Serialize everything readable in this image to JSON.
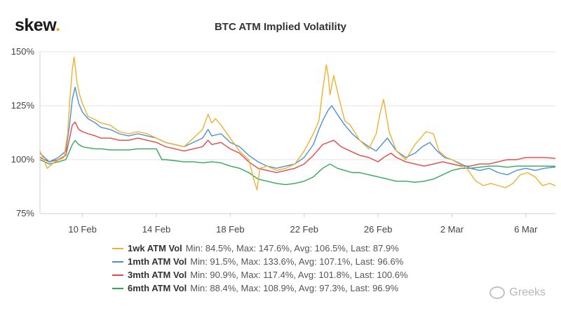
{
  "brand": {
    "logo_text": "skew",
    "logo_dot": "."
  },
  "watermark": {
    "text": "Greeks",
    "icon": "wechat-icon"
  },
  "chart_data": {
    "type": "line",
    "title": "BTC ATM Implied Volatility",
    "xlabel": "",
    "ylabel": "",
    "ylim": [
      75,
      150
    ],
    "yticks": [
      "75%",
      "100%",
      "125%",
      "150%"
    ],
    "ytick_values": [
      75,
      100,
      125,
      150
    ],
    "xlim": [
      7.7,
      35.6
    ],
    "xticks": [
      "10 Feb",
      "14 Feb",
      "18 Feb",
      "22 Feb",
      "26 Feb",
      "2 Mar",
      "6 Mar"
    ],
    "xtick_values": [
      10,
      14,
      18,
      22,
      26,
      30,
      34
    ],
    "series": [
      {
        "name": "1wk ATM Vol",
        "color": "#f0b030",
        "stats": "Min: 84.5%, Max: 147.6%, Avg: 106.5%, Last: 87.9%",
        "x": [
          7.7,
          8.1,
          8.5,
          9.0,
          9.2,
          9.3,
          9.45,
          9.55,
          9.7,
          9.85,
          10.0,
          10.3,
          10.6,
          11.0,
          11.5,
          12.0,
          12.5,
          13.0,
          13.5,
          14.0,
          14.5,
          15.0,
          15.5,
          16.0,
          16.5,
          16.8,
          17.0,
          17.2,
          17.5,
          18.0,
          18.5,
          19.0,
          19.3,
          19.45,
          19.6,
          20.0,
          20.5,
          21.0,
          21.5,
          22.0,
          22.5,
          22.8,
          23.0,
          23.2,
          23.3,
          23.4,
          23.6,
          23.9,
          24.2,
          24.5,
          25.0,
          25.5,
          25.9,
          26.1,
          26.3,
          26.6,
          27.0,
          27.5,
          28.0,
          28.3,
          28.6,
          29.0,
          29.3,
          29.7,
          30.0,
          30.4,
          30.8,
          31.3,
          31.7,
          32.1,
          32.5,
          32.9,
          33.3,
          33.7,
          34.1,
          34.5,
          34.9,
          35.3,
          35.6
        ],
        "y": [
          104,
          96,
          99,
          101,
          112,
          126,
          142,
          147.6,
          136,
          130,
          126,
          120,
          119,
          117,
          116,
          113,
          112,
          113,
          112,
          110,
          108,
          107,
          106,
          110,
          114,
          121,
          117,
          119,
          116,
          110,
          104,
          100,
          90,
          86,
          96,
          97,
          95,
          96,
          98,
          104,
          112,
          118,
          132,
          144,
          139,
          130,
          139,
          128,
          118,
          116,
          109,
          105,
          112,
          121,
          128,
          113,
          104,
          100,
          107,
          110,
          113,
          112,
          104,
          101,
          100,
          98,
          96,
          90,
          88,
          89,
          88,
          87,
          89,
          93,
          94,
          92,
          88,
          89,
          87.9
        ]
      },
      {
        "name": "1mth ATM Vol",
        "color": "#4a90d9",
        "stats": "Min: 91.5%, Max: 133.6%, Avg: 107.1%, Last: 96.6%",
        "x": [
          7.7,
          8.2,
          8.7,
          9.1,
          9.3,
          9.45,
          9.6,
          9.8,
          10.0,
          10.3,
          10.7,
          11.0,
          11.5,
          12.0,
          12.5,
          13.0,
          13.5,
          14.0,
          14.5,
          15.0,
          15.5,
          16.0,
          16.5,
          16.8,
          17.0,
          17.5,
          18.0,
          18.5,
          19.0,
          19.5,
          20.0,
          20.5,
          21.0,
          21.5,
          22.0,
          22.5,
          22.8,
          23.0,
          23.3,
          23.5,
          23.8,
          24.2,
          24.6,
          25.0,
          25.5,
          25.9,
          26.2,
          26.5,
          27.0,
          27.5,
          28.0,
          28.4,
          28.8,
          29.2,
          29.6,
          30.0,
          30.5,
          31.0,
          31.5,
          32.0,
          32.5,
          33.0,
          33.5,
          34.0,
          34.5,
          35.0,
          35.6
        ],
        "y": [
          103,
          99,
          101,
          104,
          116,
          128,
          133.6,
          126,
          122,
          119,
          117,
          115,
          114,
          112,
          111,
          112,
          111,
          110,
          108,
          107,
          106,
          108,
          110,
          114,
          111,
          112,
          108,
          106,
          102,
          99,
          97,
          96,
          97,
          98,
          101,
          107,
          114,
          118,
          123,
          125,
          121,
          116,
          112,
          109,
          106,
          104,
          107,
          110,
          104,
          101,
          103,
          106,
          108,
          104,
          101,
          100,
          98,
          96,
          95,
          96,
          94,
          93,
          95,
          96,
          95,
          96,
          96.6
        ]
      },
      {
        "name": "3mth ATM Vol",
        "color": "#e84545",
        "stats": "Min: 90.9%, Max: 117.4%, Avg: 101.8%, Last: 100.6%",
        "x": [
          7.7,
          8.2,
          8.7,
          9.1,
          9.3,
          9.45,
          9.6,
          9.8,
          10.0,
          10.3,
          10.7,
          11.0,
          11.5,
          12.0,
          12.5,
          13.0,
          13.5,
          14.0,
          14.5,
          15.0,
          15.5,
          16.0,
          16.5,
          16.8,
          17.0,
          17.5,
          18.0,
          18.5,
          19.0,
          19.5,
          20.0,
          20.5,
          21.0,
          21.5,
          22.0,
          22.5,
          22.8,
          23.0,
          23.3,
          23.6,
          24.0,
          24.5,
          25.0,
          25.5,
          26.0,
          26.3,
          26.7,
          27.0,
          27.5,
          28.0,
          28.5,
          29.0,
          29.5,
          30.0,
          30.5,
          31.0,
          31.5,
          32.0,
          32.5,
          33.0,
          33.5,
          34.0,
          34.5,
          35.0,
          35.6
        ],
        "y": [
          101,
          99,
          100,
          102,
          110,
          116,
          117.4,
          114,
          113,
          112,
          111,
          110,
          110,
          109,
          109,
          110,
          109,
          108,
          106,
          105,
          104,
          105,
          106,
          109,
          107,
          108,
          105,
          103,
          99,
          96,
          95,
          94,
          95,
          96,
          98,
          102,
          105,
          107,
          108,
          109,
          106,
          104,
          102,
          101,
          99,
          101,
          103,
          101,
          99,
          98,
          97,
          98,
          99,
          98,
          97,
          97,
          98,
          98,
          99,
          100,
          100,
          101,
          101,
          101,
          100.6
        ]
      },
      {
        "name": "6mth ATM Vol",
        "color": "#2eaa5a",
        "stats": "Min: 88.4%, Max: 108.9%, Avg: 97.3%, Last: 96.9%",
        "x": [
          7.7,
          8.2,
          8.7,
          9.1,
          9.3,
          9.45,
          9.6,
          9.8,
          10.0,
          10.3,
          10.7,
          11.0,
          11.5,
          12.0,
          12.5,
          13.0,
          13.5,
          14.0,
          14.3,
          14.5,
          15.0,
          15.5,
          16.0,
          16.5,
          17.0,
          17.5,
          18.0,
          18.5,
          19.0,
          19.5,
          20.0,
          20.5,
          21.0,
          21.5,
          22.0,
          22.5,
          23.0,
          23.4,
          23.8,
          24.2,
          24.6,
          25.0,
          25.5,
          26.0,
          26.5,
          27.0,
          27.5,
          28.0,
          28.5,
          29.0,
          29.5,
          30.0,
          30.5,
          31.0,
          31.5,
          32.0,
          32.5,
          33.0,
          33.5,
          34.0,
          34.5,
          35.0,
          35.6
        ],
        "y": [
          100,
          98,
          99,
          100,
          104,
          107,
          108.9,
          107,
          106,
          105.5,
          105,
          105,
          104.5,
          104.5,
          104.5,
          105,
          105,
          105,
          100,
          100,
          99.5,
          99,
          99,
          98.5,
          99,
          98.5,
          97,
          96,
          94,
          91,
          90,
          89,
          88.4,
          89,
          90,
          92,
          96,
          98,
          96,
          95,
          94,
          94,
          93,
          92,
          91,
          90,
          90,
          89.5,
          90,
          91,
          93,
          95,
          96,
          96,
          96.5,
          97,
          97,
          96.5,
          97,
          97,
          97,
          97,
          96.9
        ]
      }
    ]
  }
}
